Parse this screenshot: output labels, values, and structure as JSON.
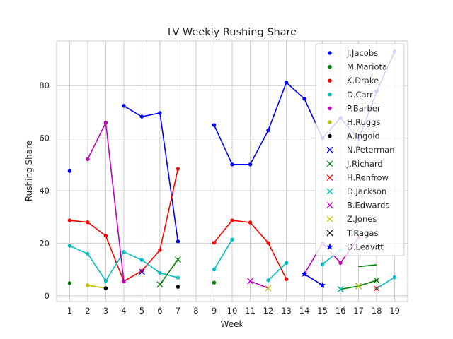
{
  "chart_data": {
    "type": "line",
    "title": "LV Weekly Rushing Share",
    "xlabel": "Week",
    "ylabel": "Rushing Share",
    "x_ticks": [
      1,
      2,
      3,
      4,
      5,
      6,
      7,
      8,
      9,
      10,
      11,
      12,
      13,
      14,
      15,
      16,
      17,
      18,
      19
    ],
    "y_ticks": [
      0,
      20,
      40,
      60,
      80
    ],
    "xlim": [
      0.28,
      19.72
    ],
    "ylim": [
      -2.2,
      97.0
    ],
    "grid": true,
    "legend_position": "top-right",
    "series": [
      {
        "name": "J.Jacobs",
        "color": "#0000ff",
        "marker": "dot",
        "points": [
          [
            1,
            47.5
          ],
          [
            4,
            72.3
          ],
          [
            5,
            68.2
          ],
          [
            6,
            69.6
          ],
          [
            7,
            20.7
          ],
          [
            9,
            65.0
          ],
          [
            10,
            50.0
          ],
          [
            11,
            50.0
          ],
          [
            12,
            63.0
          ],
          [
            13,
            81.2
          ],
          [
            14,
            75.0
          ],
          [
            15,
            60.0
          ],
          [
            16,
            67.7
          ],
          [
            17,
            59.5
          ],
          [
            18,
            77.8
          ],
          [
            19,
            93.0
          ]
        ],
        "segments": [
          [
            4,
            7
          ],
          [
            9,
            19
          ]
        ]
      },
      {
        "name": "M.Mariota",
        "color": "#008000",
        "marker": "dot",
        "points": [
          [
            1,
            4.8
          ],
          [
            9,
            5.0
          ]
        ],
        "segments": []
      },
      {
        "name": "K.Drake",
        "color": "#ff0000",
        "marker": "dot",
        "points": [
          [
            1,
            28.7
          ],
          [
            2,
            28.0
          ],
          [
            3,
            22.8
          ],
          [
            4,
            5.5
          ],
          [
            5,
            9.5
          ],
          [
            6,
            17.4
          ],
          [
            7,
            48.3
          ],
          [
            9,
            20.2
          ],
          [
            10,
            28.7
          ],
          [
            11,
            27.9
          ],
          [
            12,
            20.1
          ],
          [
            13,
            6.3
          ]
        ],
        "segments": [
          [
            1,
            7
          ],
          [
            9,
            13
          ]
        ]
      },
      {
        "name": "D.Carr",
        "color": "#00bfbf",
        "marker": "dot",
        "points": [
          [
            1,
            19.0
          ],
          [
            2,
            16.0
          ],
          [
            3,
            5.7
          ],
          [
            4,
            16.7
          ],
          [
            5,
            13.6
          ],
          [
            6,
            8.7
          ],
          [
            7,
            6.9
          ],
          [
            9,
            10.0
          ],
          [
            10,
            21.4
          ],
          [
            12,
            5.9
          ],
          [
            13,
            12.5
          ],
          [
            15,
            12.0
          ],
          [
            16,
            17.4
          ],
          [
            18,
            2.8
          ],
          [
            19,
            7.1
          ]
        ],
        "segments": [
          [
            1,
            7
          ],
          [
            9,
            10
          ],
          [
            12,
            13
          ],
          [
            15,
            16
          ],
          [
            18,
            19
          ]
        ]
      },
      {
        "name": "P.Barber",
        "color": "#bf00bf",
        "marker": "dot",
        "points": [
          [
            2,
            52.0
          ],
          [
            3,
            65.9
          ],
          [
            4,
            5.5
          ],
          [
            14,
            8.3
          ],
          [
            15,
            20.0
          ],
          [
            16,
            12.5
          ],
          [
            17,
            22.2
          ]
        ],
        "segments": [
          [
            2,
            4
          ],
          [
            14,
            17
          ]
        ]
      },
      {
        "name": "H.Ruggs",
        "color": "#bfbf00",
        "marker": "dot",
        "points": [
          [
            2,
            4.0
          ],
          [
            3,
            2.9
          ]
        ],
        "segments": [
          [
            2,
            3
          ]
        ]
      },
      {
        "name": "A.Ingold",
        "color": "#000000",
        "marker": "dot",
        "points": [
          [
            3,
            2.9
          ],
          [
            7,
            3.4
          ]
        ],
        "segments": []
      },
      {
        "name": "N.Peterman",
        "color": "#0000ff",
        "marker": "x",
        "points": [
          [
            5,
            9.1
          ]
        ],
        "segments": []
      },
      {
        "name": "J.Richard",
        "color": "#008000",
        "marker": "x",
        "points": [
          [
            6,
            4.3
          ],
          [
            7,
            13.8
          ],
          [
            16,
            2.5
          ],
          [
            17,
            3.7
          ],
          [
            18,
            5.9
          ]
        ],
        "segments": [
          [
            6,
            7
          ],
          [
            16,
            18
          ]
        ]
      },
      {
        "name": "H.Renfrow",
        "color": "#ff0000",
        "marker": "x",
        "points": [
          [
            18,
            2.8
          ]
        ],
        "segments": []
      },
      {
        "name": "D.Jackson",
        "color": "#00bfbf",
        "marker": "x",
        "points": [
          [
            16,
            2.5
          ]
        ],
        "segments": []
      },
      {
        "name": "B.Edwards",
        "color": "#bf00bf",
        "marker": "x",
        "points": [
          [
            11,
            5.6
          ]
        ],
        "segments": []
      },
      {
        "name": "Z.Jones",
        "color": "#bfbf00",
        "marker": "x",
        "points": [
          [
            12,
            2.9
          ],
          [
            17,
            3.7
          ]
        ],
        "segments": []
      },
      {
        "name": "T.Ragas",
        "color": "#000000",
        "marker": "x",
        "points": [],
        "segments": []
      },
      {
        "name": "D.Leavitt",
        "color": "#0000ff",
        "marker": "star",
        "points": [
          [
            14,
            8.3
          ],
          [
            15,
            4.0
          ]
        ],
        "segments": [
          [
            14,
            15
          ]
        ]
      }
    ],
    "extra_lines": [
      {
        "color": "#008000",
        "points": [
          [
            17,
            11.1
          ],
          [
            18,
            11.8
          ]
        ]
      },
      {
        "color": "#bf00bf",
        "points": [
          [
            11,
            5.6
          ],
          [
            12,
            2.9
          ]
        ]
      }
    ]
  }
}
